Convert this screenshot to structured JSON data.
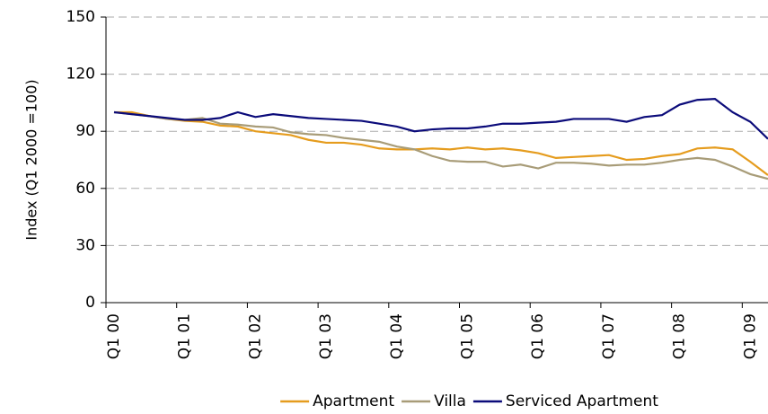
{
  "chart_data": {
    "type": "line",
    "y_label": "Index (Q1 2000 =100)",
    "categories": [
      "Q1 00",
      null,
      null,
      null,
      "Q1 01",
      null,
      null,
      null,
      "Q1 02",
      null,
      null,
      null,
      "Q1 03",
      null,
      null,
      null,
      "Q1 04",
      null,
      null,
      null,
      "Q1 05",
      null,
      null,
      null,
      "Q1 06",
      null,
      null,
      null,
      "Q1 07",
      null,
      null,
      null,
      "Q1 08",
      null,
      null,
      null,
      "Q1 09",
      null
    ],
    "series": [
      {
        "name": "Apartment",
        "color": "#e59c1e",
        "values": [
          100,
          100,
          98,
          96.5,
          95.5,
          95,
          93,
          92.5,
          90,
          89,
          88,
          85.5,
          84,
          84,
          83,
          81,
          80.5,
          80.5,
          81,
          80.5,
          81.5,
          80.5,
          81,
          80,
          78.5,
          76,
          76.5,
          77,
          77.5,
          75,
          75.5,
          77,
          78,
          81,
          81.5,
          80.5,
          74,
          67
        ]
      },
      {
        "name": "Villa",
        "color": "#a89c78",
        "values": [
          100,
          99,
          98,
          96.5,
          96,
          97,
          94,
          93.5,
          92.5,
          92,
          89.5,
          88.5,
          88,
          86.5,
          85.5,
          84.5,
          82,
          80.5,
          77,
          74.5,
          74,
          74,
          71.5,
          72.5,
          70.5,
          73.5,
          73.5,
          73,
          72,
          72.5,
          72.5,
          73.5,
          75,
          76,
          75,
          71.5,
          67.5,
          65
        ]
      },
      {
        "name": "Serviced Apartment",
        "color": "#0b0b7a",
        "values": [
          100,
          99,
          98,
          97,
          96,
          96,
          97,
          100,
          97.5,
          99,
          98,
          97,
          96.5,
          96,
          95.5,
          94,
          92.5,
          90,
          91,
          91.5,
          91.5,
          92.5,
          94,
          94,
          94.5,
          95,
          96.5,
          96.5,
          96.5,
          95,
          97.5,
          98.5,
          104,
          106.5,
          107,
          100,
          95,
          86
        ]
      }
    ],
    "ylim": [
      0,
      150
    ],
    "yticks": [
      0,
      30,
      60,
      90,
      120,
      150
    ],
    "grid": true,
    "legend": "bottom"
  }
}
